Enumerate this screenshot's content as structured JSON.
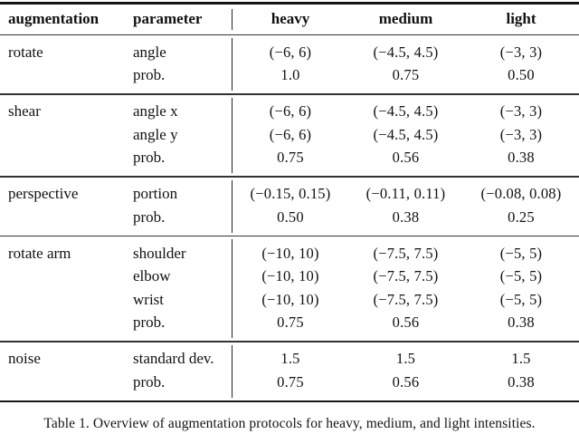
{
  "table": {
    "caption": "Table 1. Overview of augmentation protocols for heavy, medium, and light intensities.",
    "headers": [
      "augmentation",
      "parameter",
      "heavy",
      "medium",
      "light"
    ],
    "sections": [
      {
        "name": "rotate",
        "rows": [
          {
            "parameter": "angle",
            "heavy": "(−6, 6)",
            "medium": "(−4.5, 4.5)",
            "light": "(−3, 3)"
          },
          {
            "parameter": "prob.",
            "heavy": "1.0",
            "medium": "0.75",
            "light": "0.50"
          }
        ]
      },
      {
        "name": "shear",
        "rows": [
          {
            "parameter": "angle x",
            "heavy": "(−6, 6)",
            "medium": "(−4.5, 4.5)",
            "light": "(−3, 3)"
          },
          {
            "parameter": "angle y",
            "heavy": "(−6, 6)",
            "medium": "(−4.5, 4.5)",
            "light": "(−3, 3)"
          },
          {
            "parameter": "prob.",
            "heavy": "0.75",
            "medium": "0.56",
            "light": "0.38"
          }
        ]
      },
      {
        "name": "perspective",
        "rows": [
          {
            "parameter": "portion",
            "heavy": "(−0.15, 0.15)",
            "medium": "(−0.11, 0.11)",
            "light": "(−0.08, 0.08)"
          },
          {
            "parameter": "prob.",
            "heavy": "0.50",
            "medium": "0.38",
            "light": "0.25"
          }
        ]
      },
      {
        "name": "rotate arm",
        "rows": [
          {
            "parameter": "shoulder",
            "heavy": "(−10, 10)",
            "medium": "(−7.5, 7.5)",
            "light": "(−5, 5)"
          },
          {
            "parameter": "elbow",
            "heavy": "(−10, 10)",
            "medium": "(−7.5, 7.5)",
            "light": "(−5, 5)"
          },
          {
            "parameter": "wrist",
            "heavy": "(−10, 10)",
            "medium": "(−7.5, 7.5)",
            "light": "(−5, 5)"
          },
          {
            "parameter": "prob.",
            "heavy": "0.75",
            "medium": "0.56",
            "light": "0.38"
          }
        ]
      },
      {
        "name": "noise",
        "rows": [
          {
            "parameter": "standard dev.",
            "heavy": "1.5",
            "medium": "1.5",
            "light": "1.5"
          },
          {
            "parameter": "prob.",
            "heavy": "0.75",
            "medium": "0.56",
            "light": "0.38"
          }
        ]
      }
    ]
  }
}
